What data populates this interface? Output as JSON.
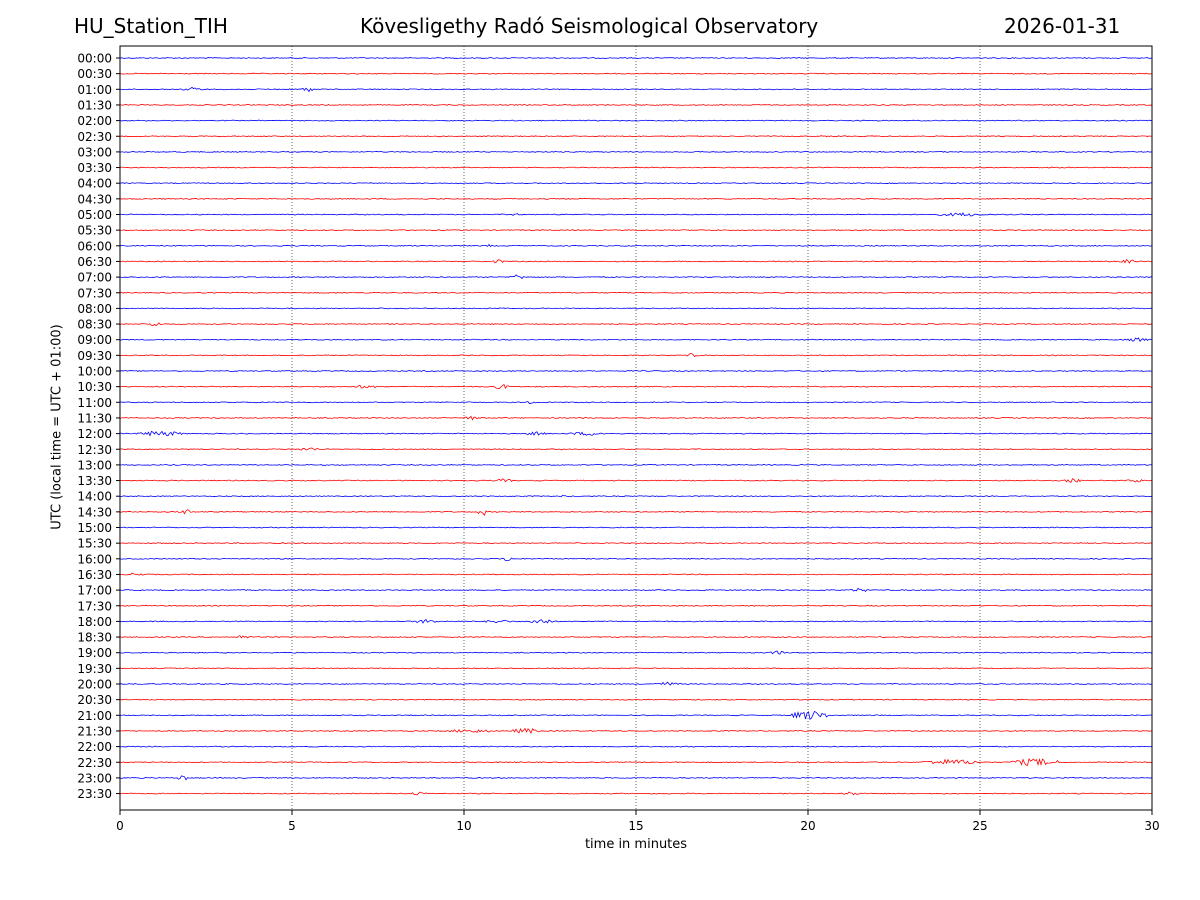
{
  "header": {
    "station": "HU_Station_TIH",
    "observatory": "Kövesligethy Radó Seismological Observatory",
    "date": "2026-01-31"
  },
  "chart_data": {
    "type": "line",
    "title": "Kövesligethy Radó Seismological Observatory",
    "xlabel": "time in minutes",
    "ylabel": "UTC (local time = UTC + 01:00)",
    "xlim": [
      0,
      30
    ],
    "xticks": [
      0,
      5,
      10,
      15,
      20,
      25,
      30
    ],
    "grid": "vertical dotted lines at x ticks",
    "trace_colors": [
      "#0000ff",
      "#ff0000"
    ],
    "rows": [
      "00:00",
      "00:30",
      "01:00",
      "01:30",
      "02:00",
      "02:30",
      "03:00",
      "03:30",
      "04:00",
      "04:30",
      "05:00",
      "05:30",
      "06:00",
      "06:30",
      "07:00",
      "07:30",
      "08:00",
      "08:30",
      "09:00",
      "09:30",
      "10:00",
      "10:30",
      "11:00",
      "11:30",
      "12:00",
      "12:30",
      "13:00",
      "13:30",
      "14:00",
      "14:30",
      "15:00",
      "15:30",
      "16:00",
      "16:30",
      "17:00",
      "17:30",
      "18:00",
      "18:30",
      "19:00",
      "19:30",
      "20:00",
      "20:30",
      "21:00",
      "21:30",
      "22:00",
      "22:30",
      "23:00",
      "23:30"
    ],
    "events": [
      {
        "row": "01:00",
        "start": 1.8,
        "end": 2.4,
        "amp": 2
      },
      {
        "row": "01:00",
        "start": 5.3,
        "end": 5.6,
        "amp": 3
      },
      {
        "row": "05:00",
        "start": 11.4,
        "end": 11.6,
        "amp": 2
      },
      {
        "row": "05:00",
        "start": 23.8,
        "end": 25.2,
        "amp": 2
      },
      {
        "row": "06:00",
        "start": 10.6,
        "end": 10.8,
        "amp": 2
      },
      {
        "row": "06:30",
        "start": 10.8,
        "end": 11.2,
        "amp": 2
      },
      {
        "row": "06:30",
        "start": 29.0,
        "end": 29.6,
        "amp": 2
      },
      {
        "row": "07:00",
        "start": 11.3,
        "end": 11.8,
        "amp": 3
      },
      {
        "row": "08:30",
        "start": 0.8,
        "end": 1.2,
        "amp": 3
      },
      {
        "row": "09:00",
        "start": 29.2,
        "end": 29.9,
        "amp": 2
      },
      {
        "row": "09:30",
        "start": 16.4,
        "end": 16.8,
        "amp": 2
      },
      {
        "row": "10:30",
        "start": 6.8,
        "end": 7.5,
        "amp": 2
      },
      {
        "row": "10:30",
        "start": 10.9,
        "end": 11.3,
        "amp": 3
      },
      {
        "row": "11:00",
        "start": 11.8,
        "end": 12.1,
        "amp": 2
      },
      {
        "row": "11:30",
        "start": 10.0,
        "end": 10.5,
        "amp": 2
      },
      {
        "row": "12:00",
        "start": 0.5,
        "end": 1.8,
        "amp": 3
      },
      {
        "row": "12:00",
        "start": 11.8,
        "end": 12.4,
        "amp": 2
      },
      {
        "row": "12:00",
        "start": 13.0,
        "end": 14.2,
        "amp": 2
      },
      {
        "row": "12:30",
        "start": 5.2,
        "end": 5.8,
        "amp": 2
      },
      {
        "row": "13:30",
        "start": 10.9,
        "end": 11.4,
        "amp": 2
      },
      {
        "row": "13:30",
        "start": 27.4,
        "end": 28.0,
        "amp": 2
      },
      {
        "row": "13:30",
        "start": 29.3,
        "end": 29.8,
        "amp": 2
      },
      {
        "row": "14:00",
        "start": 12.7,
        "end": 12.9,
        "amp": 2
      },
      {
        "row": "14:30",
        "start": 1.7,
        "end": 2.1,
        "amp": 3
      },
      {
        "row": "14:30",
        "start": 10.4,
        "end": 10.7,
        "amp": 4
      },
      {
        "row": "16:00",
        "start": 11.1,
        "end": 11.4,
        "amp": 3
      },
      {
        "row": "16:30",
        "start": 0.2,
        "end": 0.7,
        "amp": 2
      },
      {
        "row": "17:00",
        "start": 21.2,
        "end": 21.8,
        "amp": 2
      },
      {
        "row": "18:00",
        "start": 8.5,
        "end": 9.3,
        "amp": 2
      },
      {
        "row": "18:00",
        "start": 10.6,
        "end": 11.4,
        "amp": 2
      },
      {
        "row": "18:00",
        "start": 11.9,
        "end": 12.6,
        "amp": 3
      },
      {
        "row": "18:30",
        "start": 3.3,
        "end": 3.8,
        "amp": 2
      },
      {
        "row": "19:00",
        "start": 18.8,
        "end": 19.4,
        "amp": 2
      },
      {
        "row": "20:00",
        "start": 15.5,
        "end": 16.3,
        "amp": 2
      },
      {
        "row": "21:00",
        "start": 19.5,
        "end": 20.6,
        "amp": 5
      },
      {
        "row": "21:30",
        "start": 9.5,
        "end": 10.9,
        "amp": 2
      },
      {
        "row": "21:30",
        "start": 11.4,
        "end": 12.2,
        "amp": 3
      },
      {
        "row": "22:30",
        "start": 23.3,
        "end": 25.0,
        "amp": 3
      },
      {
        "row": "22:30",
        "start": 25.9,
        "end": 27.3,
        "amp": 4
      },
      {
        "row": "23:00",
        "start": 1.6,
        "end": 2.0,
        "amp": 3
      },
      {
        "row": "23:30",
        "start": 8.4,
        "end": 8.9,
        "amp": 2
      },
      {
        "row": "23:30",
        "start": 20.9,
        "end": 21.6,
        "amp": 2
      }
    ]
  }
}
